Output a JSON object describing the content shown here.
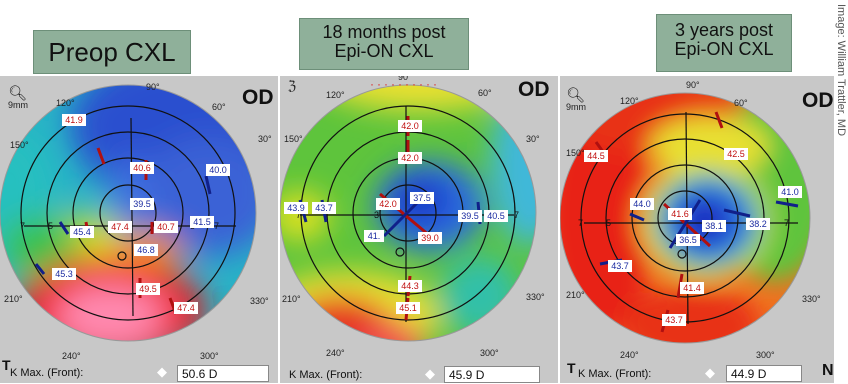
{
  "credit": "Image: William Trattler, MD",
  "panels": [
    {
      "title": "Preop CXL",
      "eye": "OD",
      "scale": "9mm",
      "kmax_label": "K Max. (Front):",
      "kmax_value": "50.6 D",
      "axis_labels": [
        "90°",
        "120°",
        "60°",
        "150°",
        "30°",
        "210°",
        "330°",
        "240°",
        "300°"
      ],
      "readings": [
        {
          "v": "41.9",
          "c": "red"
        },
        {
          "v": "40.6",
          "c": "red"
        },
        {
          "v": "40.0",
          "c": "blue"
        },
        {
          "v": "39.5",
          "c": "blue"
        },
        {
          "v": "45.4",
          "c": "blue"
        },
        {
          "v": "47.4",
          "c": "red"
        },
        {
          "v": "40.7",
          "c": "red"
        },
        {
          "v": "41.5",
          "c": "blue"
        },
        {
          "v": "46.8",
          "c": "blue"
        },
        {
          "v": "45.3",
          "c": "blue"
        },
        {
          "v": "49.5",
          "c": "red"
        },
        {
          "v": "47.4",
          "c": "red"
        }
      ]
    },
    {
      "title_line1": "18 months post",
      "title_line2": "Epi-ON CXL",
      "eye": "OD",
      "kmax_label": "K Max. (Front):",
      "kmax_value": "45.9 D",
      "axis_labels": [
        "90",
        "120°",
        "60°",
        "150°",
        "30°",
        "210°",
        "330°",
        "240°",
        "300°"
      ],
      "readings": [
        {
          "v": "42.0",
          "c": "red"
        },
        {
          "v": "42.0",
          "c": "red"
        },
        {
          "v": "43.9",
          "c": "blue"
        },
        {
          "v": "43.7",
          "c": "blue"
        },
        {
          "v": "42.0",
          "c": "red"
        },
        {
          "v": "37.5",
          "c": "blue"
        },
        {
          "v": "39.5",
          "c": "blue"
        },
        {
          "v": "40.5",
          "c": "blue"
        },
        {
          "v": "41.",
          "c": "blue"
        },
        {
          "v": "39.0",
          "c": "red"
        },
        {
          "v": "44.3",
          "c": "red"
        },
        {
          "v": "45.1",
          "c": "red"
        }
      ]
    },
    {
      "title_line1": "3 years post",
      "title_line2": "Epi-ON CXL",
      "eye": "OD",
      "scale": "9mm",
      "kmax_label": "K Max. (Front):",
      "kmax_value": "44.9 D",
      "axis_labels": [
        "90°",
        "120°",
        "60°",
        "150°",
        "210°",
        "330°",
        "240°",
        "300°"
      ],
      "readings": [
        {
          "v": "44.5",
          "c": "red"
        },
        {
          "v": "42.5",
          "c": "red"
        },
        {
          "v": "41.0",
          "c": "blue"
        },
        {
          "v": "44.0",
          "c": "blue"
        },
        {
          "v": "41.6",
          "c": "red"
        },
        {
          "v": "38.1",
          "c": "blue"
        },
        {
          "v": "38.2",
          "c": "blue"
        },
        {
          "v": "36.5",
          "c": "blue"
        },
        {
          "v": "43.7",
          "c": "blue"
        },
        {
          "v": "41.4",
          "c": "red"
        },
        {
          "v": "43.7",
          "c": "red"
        }
      ]
    }
  ]
}
